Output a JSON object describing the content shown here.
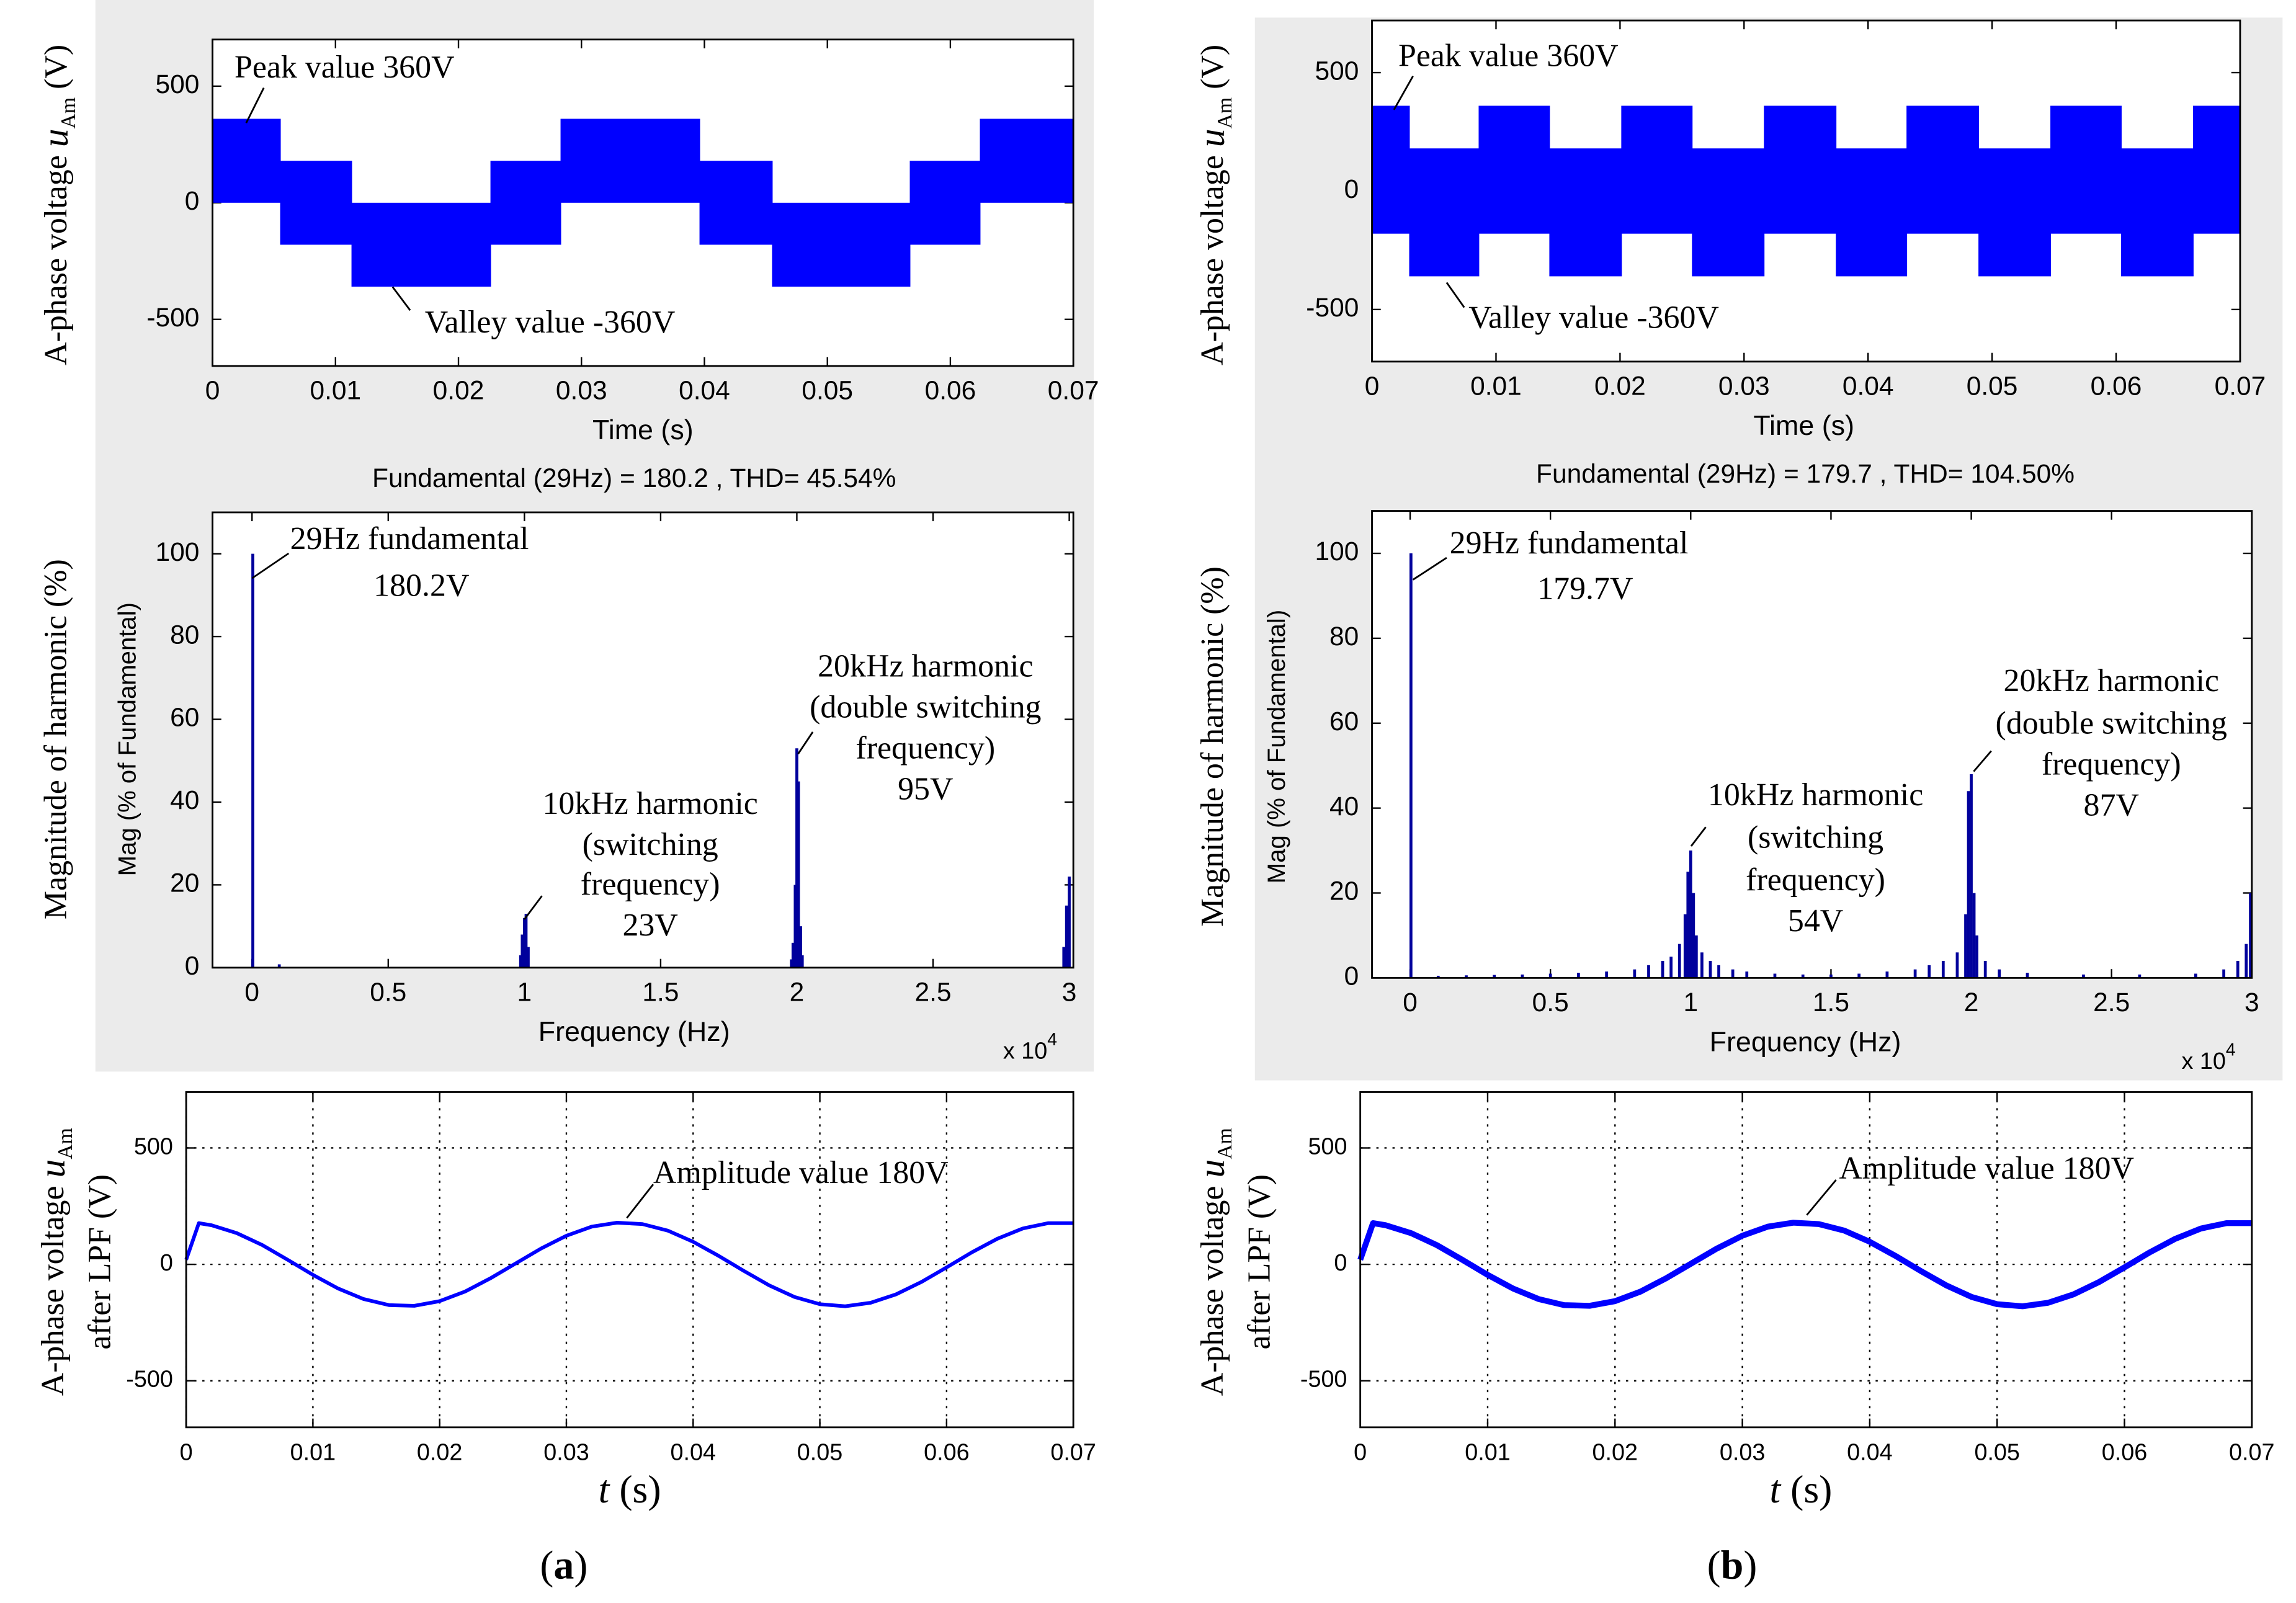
{
  "captions": [
    "a",
    "b"
  ],
  "chart_data": [
    {
      "type": "band",
      "xlabel": "Time (s)",
      "ylabel": {
        "prefix": "A-phase voltage ",
        "symbol": "u",
        "subscript": "Am",
        "suffix": " (V)"
      },
      "xlim": [
        0,
        0.07
      ],
      "ylim": [
        -700,
        700
      ],
      "xticks": [
        0,
        0.01,
        0.02,
        0.03,
        0.04,
        0.05,
        0.06,
        0.07
      ],
      "yticks": [
        -500,
        0,
        500
      ],
      "x": [
        0,
        0.0055,
        0.0113,
        0.0226,
        0.0283,
        0.0396,
        0.0455,
        0.0567,
        0.0624
      ],
      "upper": [
        360,
        180,
        0,
        180,
        360,
        180,
        0,
        180,
        360
      ],
      "lower": [
        0,
        -180,
        -360,
        -180,
        0,
        -180,
        -360,
        -180,
        0
      ],
      "color": "#0000ff",
      "grid": false,
      "annotations": [
        "Peak value 360V",
        "Valley value -360V"
      ]
    },
    {
      "type": "bar",
      "title": "Fundamental (29Hz) = 180.2 , THD= 45.54%",
      "xlabel": "Frequency (Hz)",
      "xlabel_multiplier": {
        "base": "x 10",
        "exponent": "4"
      },
      "ylabel": "Mag (% of Fundamental)",
      "ylabel_outer": "Magnitude of harmonic (%)",
      "xlim": [
        -1450,
        30150
      ],
      "ylim": [
        0,
        110
      ],
      "xticks": [
        0,
        {
          "value": 5000,
          "label": "0.5"
        },
        {
          "value": 10000,
          "label": "1"
        },
        {
          "value": 15000,
          "label": "1.5"
        },
        {
          "value": 20000,
          "label": "2"
        },
        {
          "value": 25000,
          "label": "2.5"
        },
        {
          "value": 30000,
          "label": "3"
        }
      ],
      "yticks": [
        0,
        20,
        40,
        60,
        80,
        100
      ],
      "x": [
        29,
        1000,
        9860,
        9920,
        10000,
        10060,
        10140,
        19800,
        19860,
        19940,
        20000,
        20060,
        20140,
        20200,
        29800,
        29900,
        30000
      ],
      "values": [
        100,
        0.8,
        3,
        8,
        12,
        13,
        5,
        2,
        6,
        20,
        53,
        45,
        10,
        3,
        5,
        15,
        22
      ],
      "color": "#00009c",
      "grid": false,
      "annotations": [
        "29Hz fundamental",
        "180.2V",
        "10kHz harmonic",
        "(switching",
        "frequency)",
        "23V",
        "20kHz harmonic",
        "(double switching",
        "frequency)",
        "95V"
      ]
    },
    {
      "type": "line",
      "xlabel": {
        "symbol": "t",
        "suffix": " (s)"
      },
      "ylabel": {
        "prefix": "A-phase voltage ",
        "symbol": "u",
        "subscript": "Am",
        "line2": "after LPF (V)"
      },
      "xlim": [
        0,
        0.07
      ],
      "ylim": [
        -700,
        740
      ],
      "xticks": [
        0,
        0.01,
        0.02,
        0.03,
        0.04,
        0.05,
        0.06,
        0.07
      ],
      "yticks": [
        -500,
        0,
        500
      ],
      "x": [
        0,
        0.001,
        0.002,
        0.004,
        0.006,
        0.008,
        0.01,
        0.012,
        0.014,
        0.016,
        0.018,
        0.02,
        0.022,
        0.024,
        0.026,
        0.028,
        0.03,
        0.032,
        0.034,
        0.036,
        0.038,
        0.04,
        0.042,
        0.044,
        0.046,
        0.048,
        0.05,
        0.052,
        0.054,
        0.056,
        0.058,
        0.06,
        0.062,
        0.064,
        0.066,
        0.068,
        0.07
      ],
      "values": [
        20,
        177,
        168,
        134,
        83,
        20,
        -45,
        -104,
        -149,
        -175,
        -178,
        -158,
        -117,
        -60,
        4,
        68,
        123,
        162,
        179,
        173,
        145,
        97,
        37,
        -28,
        -90,
        -140,
        -171,
        -180,
        -165,
        -129,
        -76,
        -13,
        52,
        110,
        154,
        177,
        177
      ],
      "color": "#0000ff",
      "grid": true,
      "annotations": [
        "Amplitude value 180V"
      ]
    },
    {
      "type": "band",
      "xlabel": "Time (s)",
      "ylabel": {
        "prefix": "A-phase voltage ",
        "symbol": "u",
        "subscript": "Am",
        "suffix": " (V)"
      },
      "xlim": [
        0,
        0.07
      ],
      "ylim": [
        -720,
        720
      ],
      "xticks": [
        0,
        0.01,
        0.02,
        0.03,
        0.04,
        0.05,
        0.06,
        0.07
      ],
      "yticks": [
        -500,
        0,
        500
      ],
      "x": [
        0,
        0.003,
        0.0086,
        0.0143,
        0.0201,
        0.0258,
        0.0316,
        0.0374,
        0.0431,
        0.0489,
        0.0547,
        0.0604,
        0.0662
      ],
      "upper": [
        360,
        180,
        360,
        180,
        360,
        180,
        360,
        180,
        360,
        180,
        360,
        180,
        360
      ],
      "lower": [
        -180,
        -360,
        -180,
        -360,
        -180,
        -360,
        -180,
        -360,
        -180,
        -360,
        -180,
        -360,
        -180
      ],
      "color": "#0000ff",
      "grid": false,
      "annotations": [
        "Peak value 360V",
        "Valley value -360V"
      ]
    },
    {
      "type": "bar",
      "title": "Fundamental (29Hz) = 179.7 , THD= 104.50%",
      "xlabel": "Frequency (Hz)",
      "xlabel_multiplier": {
        "base": "x 10",
        "exponent": "4"
      },
      "ylabel": "Mag (% of Fundamental)",
      "ylabel_outer": "Magnitude of harmonic (%)",
      "xlim": [
        -1360,
        30000
      ],
      "ylim": [
        0,
        110
      ],
      "xticks": [
        0,
        {
          "value": 5000,
          "label": "0.5"
        },
        {
          "value": 10000,
          "label": "1"
        },
        {
          "value": 15000,
          "label": "1.5"
        },
        {
          "value": 20000,
          "label": "2"
        },
        {
          "value": 25000,
          "label": "2.5"
        },
        {
          "value": 30000,
          "label": "3"
        }
      ],
      "yticks": [
        0,
        20,
        40,
        60,
        80,
        100
      ],
      "x": [
        29,
        1000,
        2000,
        3000,
        4000,
        5000,
        6000,
        7000,
        8000,
        8500,
        9000,
        9300,
        9600,
        9800,
        9900,
        10000,
        10100,
        10200,
        10400,
        10700,
        11000,
        11500,
        12000,
        13000,
        14000,
        15000,
        16000,
        17000,
        18000,
        18500,
        19000,
        19500,
        19800,
        19900,
        20000,
        20100,
        20200,
        20500,
        21000,
        22000,
        24000,
        26000,
        28000,
        29000,
        29500,
        29800,
        29950
      ],
      "values": [
        100,
        0.5,
        0.6,
        0.7,
        0.8,
        1,
        1.2,
        1.5,
        2,
        3,
        4,
        5,
        8,
        15,
        25,
        30,
        20,
        10,
        6,
        4,
        3,
        2,
        1.5,
        1,
        0.8,
        0.8,
        1,
        1.5,
        2,
        3,
        4,
        6,
        15,
        44,
        48,
        20,
        10,
        4,
        2,
        1.2,
        0.8,
        0.8,
        1,
        2,
        4,
        8,
        20
      ],
      "color": "#00009c",
      "grid": false,
      "annotations": [
        "29Hz fundamental",
        "179.7V",
        "10kHz harmonic",
        "(switching",
        "frequency)",
        "54V",
        "20kHz harmonic",
        "(double switching",
        "frequency)",
        "87V"
      ]
    },
    {
      "type": "line",
      "xlabel": {
        "symbol": "t",
        "suffix": " (s)"
      },
      "ylabel": {
        "prefix": "A-phase voltage ",
        "symbol": "u",
        "subscript": "Am",
        "line2": "after LPF (V)"
      },
      "xlim": [
        0,
        0.07
      ],
      "ylim": [
        -700,
        740
      ],
      "xticks": [
        0,
        0.01,
        0.02,
        0.03,
        0.04,
        0.05,
        0.06,
        0.07
      ],
      "yticks": [
        -500,
        0,
        500
      ],
      "x": [
        0,
        0.001,
        0.002,
        0.004,
        0.006,
        0.008,
        0.01,
        0.012,
        0.014,
        0.016,
        0.018,
        0.02,
        0.022,
        0.024,
        0.026,
        0.028,
        0.03,
        0.032,
        0.034,
        0.036,
        0.038,
        0.04,
        0.042,
        0.044,
        0.046,
        0.048,
        0.05,
        0.052,
        0.054,
        0.056,
        0.058,
        0.06,
        0.062,
        0.064,
        0.066,
        0.068,
        0.07
      ],
      "values": [
        20,
        177,
        168,
        134,
        83,
        20,
        -45,
        -104,
        -149,
        -175,
        -178,
        -158,
        -117,
        -60,
        4,
        68,
        123,
        162,
        179,
        173,
        145,
        97,
        37,
        -28,
        -90,
        -140,
        -171,
        -180,
        -165,
        -129,
        -76,
        -13,
        52,
        110,
        154,
        177,
        177
      ],
      "color": "#0000ff",
      "grid": true,
      "annotations": [
        "Amplitude value 180V"
      ]
    }
  ]
}
